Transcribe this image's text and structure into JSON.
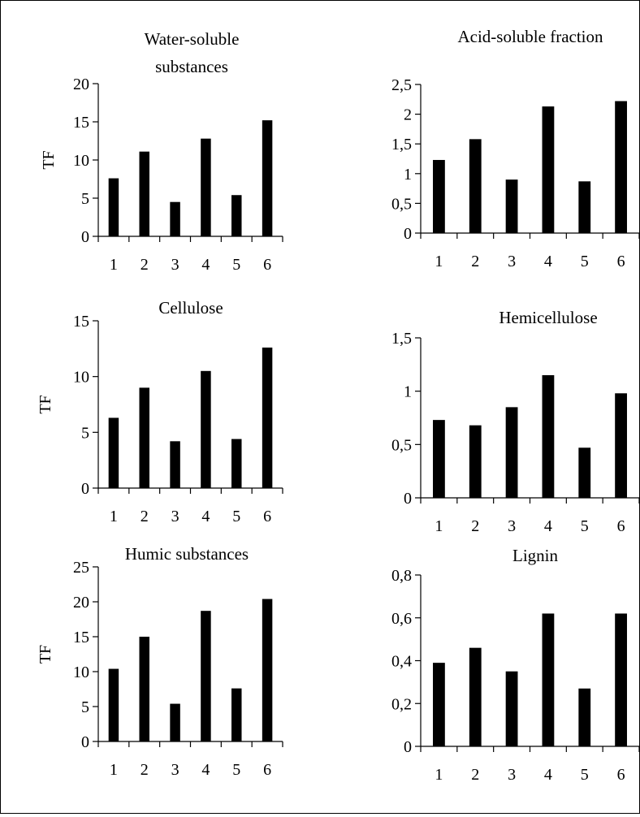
{
  "figure": {
    "background_color": "#ffffff",
    "bar_color": "#000000"
  },
  "chart_data": [
    {
      "type": "bar",
      "title": "Water-soluble substances",
      "title_lines": [
        "Water-soluble",
        "substances"
      ],
      "ylabel": "TF",
      "xlabel": "",
      "categories": [
        "1",
        "2",
        "3",
        "4",
        "5",
        "6"
      ],
      "values": [
        7.6,
        11.1,
        4.5,
        12.8,
        5.4,
        15.2
      ],
      "ylim": [
        0,
        20
      ],
      "yticks": [
        0,
        5,
        10,
        15,
        20
      ],
      "ytick_labels": [
        "0",
        "5",
        "10",
        "15",
        "20"
      ],
      "grid": false,
      "legend": "none"
    },
    {
      "type": "bar",
      "title": "Acid-soluble fraction",
      "title_lines": [
        "Acid-soluble fraction"
      ],
      "ylabel": "",
      "xlabel": "",
      "categories": [
        "1",
        "2",
        "3",
        "4",
        "5",
        "6"
      ],
      "values": [
        1.23,
        1.58,
        0.9,
        2.13,
        0.87,
        2.22
      ],
      "ylim": [
        0,
        2.5
      ],
      "yticks": [
        0,
        0.5,
        1,
        1.5,
        2,
        2.5
      ],
      "ytick_labels": [
        "0",
        "0,5",
        "1",
        "1,5",
        "2",
        "2,5"
      ],
      "grid": false,
      "legend": "none"
    },
    {
      "type": "bar",
      "title": "Cellulose",
      "title_lines": [
        "Cellulose"
      ],
      "ylabel": "TF",
      "xlabel": "",
      "categories": [
        "1",
        "2",
        "3",
        "4",
        "5",
        "6"
      ],
      "values": [
        6.3,
        9.0,
        4.2,
        10.5,
        4.4,
        12.6
      ],
      "ylim": [
        0,
        15
      ],
      "yticks": [
        0,
        5,
        10,
        15
      ],
      "ytick_labels": [
        "0",
        "5",
        "10",
        "15"
      ],
      "grid": false,
      "legend": "none"
    },
    {
      "type": "bar",
      "title": "Hemicellulose",
      "title_lines": [
        "Hemicellulose"
      ],
      "ylabel": "",
      "xlabel": "",
      "categories": [
        "1",
        "2",
        "3",
        "4",
        "5",
        "6"
      ],
      "values": [
        0.73,
        0.68,
        0.85,
        1.15,
        0.47,
        0.98
      ],
      "ylim": [
        0,
        1.5
      ],
      "yticks": [
        0,
        0.5,
        1,
        1.5
      ],
      "ytick_labels": [
        "0",
        "0,5",
        "1",
        "1,5"
      ],
      "grid": false,
      "legend": "none"
    },
    {
      "type": "bar",
      "title": "Humic substances",
      "title_lines": [
        "Humic substances"
      ],
      "ylabel": "TF",
      "xlabel": "",
      "categories": [
        "1",
        "2",
        "3",
        "4",
        "5",
        "6"
      ],
      "values": [
        10.4,
        15.0,
        5.4,
        18.7,
        7.6,
        20.4
      ],
      "ylim": [
        0,
        25
      ],
      "yticks": [
        0,
        5,
        10,
        15,
        20,
        25
      ],
      "ytick_labels": [
        "0",
        "5",
        "10",
        "15",
        "20",
        "25"
      ],
      "grid": false,
      "legend": "none"
    },
    {
      "type": "bar",
      "title": "Lignin",
      "title_lines": [
        "Lignin"
      ],
      "ylabel": "",
      "xlabel": "",
      "categories": [
        "1",
        "2",
        "3",
        "4",
        "5",
        "6"
      ],
      "values": [
        0.39,
        0.46,
        0.35,
        0.62,
        0.27,
        0.62
      ],
      "ylim": [
        0,
        0.8
      ],
      "yticks": [
        0,
        0.2,
        0.4,
        0.6,
        0.8
      ],
      "ytick_labels": [
        "0",
        "0,2",
        "0,4",
        "0,6",
        "0,8"
      ],
      "grid": false,
      "legend": "none"
    }
  ]
}
